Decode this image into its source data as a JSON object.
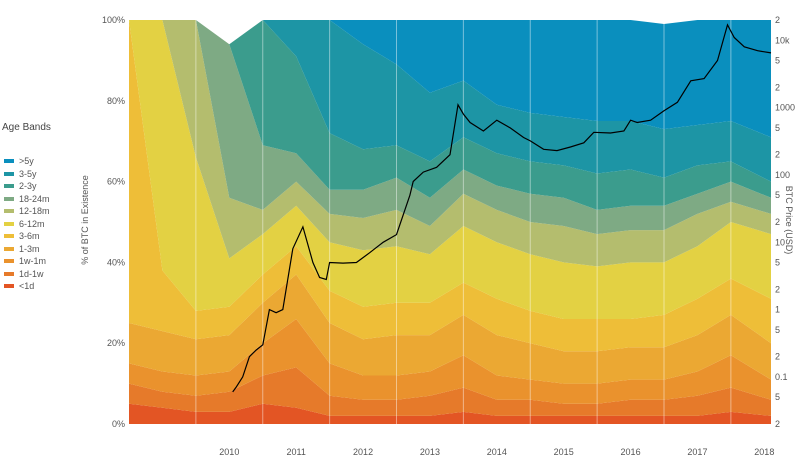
{
  "legend": {
    "title": "Age Bands",
    "items": [
      {
        "label": ">5y",
        "color": "#0a8fbe"
      },
      {
        "label": "3-5y",
        "color": "#1d95a5"
      },
      {
        "label": "2-3y",
        "color": "#3b9c8d"
      },
      {
        "label": "18-24m",
        "color": "#7eaa84"
      },
      {
        "label": "12-18m",
        "color": "#b4bd6e"
      },
      {
        "label": "6-12m",
        "color": "#e3d143"
      },
      {
        "label": "3-6m",
        "color": "#eebe38"
      },
      {
        "label": "1-3m",
        "color": "#eba833"
      },
      {
        "label": "1w-1m",
        "color": "#ea922d"
      },
      {
        "label": "1d-1w",
        "color": "#e67a2a"
      },
      {
        "label": "<1d",
        "color": "#e35524"
      }
    ]
  },
  "chart_data": {
    "type": "area",
    "ylabel_left": "% of BTC in Existence",
    "ylabel_right": "BTC Price (USD)",
    "x_ticks": [
      "2010",
      "2011",
      "2012",
      "2013",
      "2014",
      "2015",
      "2016",
      "2017",
      "2018"
    ],
    "y_left_ticks": [
      "0%",
      "20%",
      "40%",
      "60%",
      "80%",
      "100%"
    ],
    "y_left_range": [
      0,
      100
    ],
    "y_right_scale": "log",
    "y_right_ticks": [
      "2",
      "10k",
      "5",
      "2",
      "1000",
      "5",
      "2",
      "100",
      "5",
      "2",
      "10",
      "5",
      "2",
      "1",
      "5",
      "2",
      "0.1",
      "5",
      "2"
    ],
    "x": [
      2009.0,
      2009.5,
      2010.0,
      2010.5,
      2011.0,
      2011.5,
      2012.0,
      2012.5,
      2013.0,
      2013.5,
      2014.0,
      2014.5,
      2015.0,
      2015.5,
      2016.0,
      2016.5,
      2017.0,
      2017.5,
      2018.0,
      2018.6
    ],
    "series": [
      {
        "name": "<1d",
        "values": [
          5,
          4,
          3,
          3,
          5,
          4,
          2,
          2,
          2,
          2,
          3,
          2,
          2,
          2,
          2,
          2,
          2,
          2,
          3,
          2
        ]
      },
      {
        "name": "1d-1w",
        "values": [
          5,
          4,
          4,
          5,
          7,
          10,
          5,
          4,
          4,
          5,
          6,
          4,
          4,
          3,
          3,
          4,
          4,
          5,
          6,
          4
        ]
      },
      {
        "name": "1w-1m",
        "values": [
          5,
          5,
          5,
          5,
          8,
          12,
          8,
          6,
          6,
          6,
          8,
          6,
          5,
          5,
          5,
          5,
          5,
          6,
          8,
          5
        ]
      },
      {
        "name": "1-3m",
        "values": [
          10,
          10,
          9,
          9,
          10,
          11,
          10,
          9,
          10,
          9,
          10,
          10,
          9,
          8,
          8,
          8,
          8,
          9,
          10,
          9
        ]
      },
      {
        "name": "3-6m",
        "values": [
          75,
          15,
          7,
          7,
          7,
          7,
          8,
          8,
          8,
          8,
          8,
          9,
          8,
          8,
          8,
          7,
          8,
          9,
          9,
          11
        ]
      },
      {
        "name": "6-12m",
        "values": [
          0,
          62,
          38,
          12,
          10,
          10,
          12,
          14,
          14,
          12,
          14,
          14,
          14,
          14,
          13,
          14,
          13,
          13,
          14,
          16
        ]
      },
      {
        "name": "12-18m",
        "values": [
          0,
          0,
          34,
          15,
          6,
          6,
          7,
          8,
          9,
          7,
          8,
          8,
          8,
          9,
          8,
          8,
          8,
          8,
          5,
          5
        ]
      },
      {
        "name": "18-24m",
        "values": [
          0,
          0,
          0,
          38,
          16,
          7,
          6,
          7,
          8,
          7,
          6,
          6,
          7,
          7,
          6,
          6,
          6,
          5,
          5,
          4
        ]
      },
      {
        "name": "2-3y",
        "values": [
          0,
          0,
          0,
          0,
          31,
          24,
          14,
          10,
          8,
          9,
          8,
          8,
          8,
          8,
          9,
          9,
          7,
          7,
          5,
          4
        ]
      },
      {
        "name": "3-5y",
        "values": [
          0,
          0,
          0,
          0,
          0,
          9,
          28,
          26,
          20,
          17,
          14,
          12,
          12,
          12,
          13,
          12,
          12,
          10,
          10,
          11
        ]
      },
      {
        "name": ">5y",
        "values": [
          0,
          0,
          0,
          0,
          0,
          0,
          0,
          6,
          11,
          18,
          15,
          21,
          23,
          24,
          25,
          25,
          26,
          26,
          25,
          29
        ]
      }
    ],
    "price_series": {
      "x": [
        2010.55,
        2010.6,
        2010.7,
        2010.8,
        2010.9,
        2011.0,
        2011.1,
        2011.2,
        2011.3,
        2011.45,
        2011.6,
        2011.75,
        2011.85,
        2011.95,
        2012.0,
        2012.2,
        2012.4,
        2012.6,
        2012.8,
        2013.0,
        2013.2,
        2013.25,
        2013.4,
        2013.6,
        2013.8,
        2013.92,
        2014.0,
        2014.1,
        2014.3,
        2014.5,
        2014.7,
        2014.9,
        2015.0,
        2015.2,
        2015.4,
        2015.6,
        2015.8,
        2015.95,
        2016.2,
        2016.4,
        2016.5,
        2016.6,
        2016.8,
        2017.0,
        2017.2,
        2017.4,
        2017.6,
        2017.8,
        2017.95,
        2018.05,
        2018.2,
        2018.4,
        2018.6
      ],
      "values": [
        0.06,
        0.07,
        0.1,
        0.2,
        0.25,
        0.3,
        1.0,
        0.9,
        1.0,
        8,
        17,
        5,
        3,
        2.8,
        5,
        4.9,
        5,
        7,
        10,
        13,
        50,
        80,
        110,
        130,
        200,
        1100,
        800,
        600,
        450,
        650,
        500,
        360,
        320,
        240,
        230,
        260,
        300,
        430,
        420,
        450,
        650,
        600,
        650,
        900,
        1200,
        2500,
        2700,
        5000,
        17000,
        11000,
        8000,
        7000,
        6500
      ]
    }
  }
}
